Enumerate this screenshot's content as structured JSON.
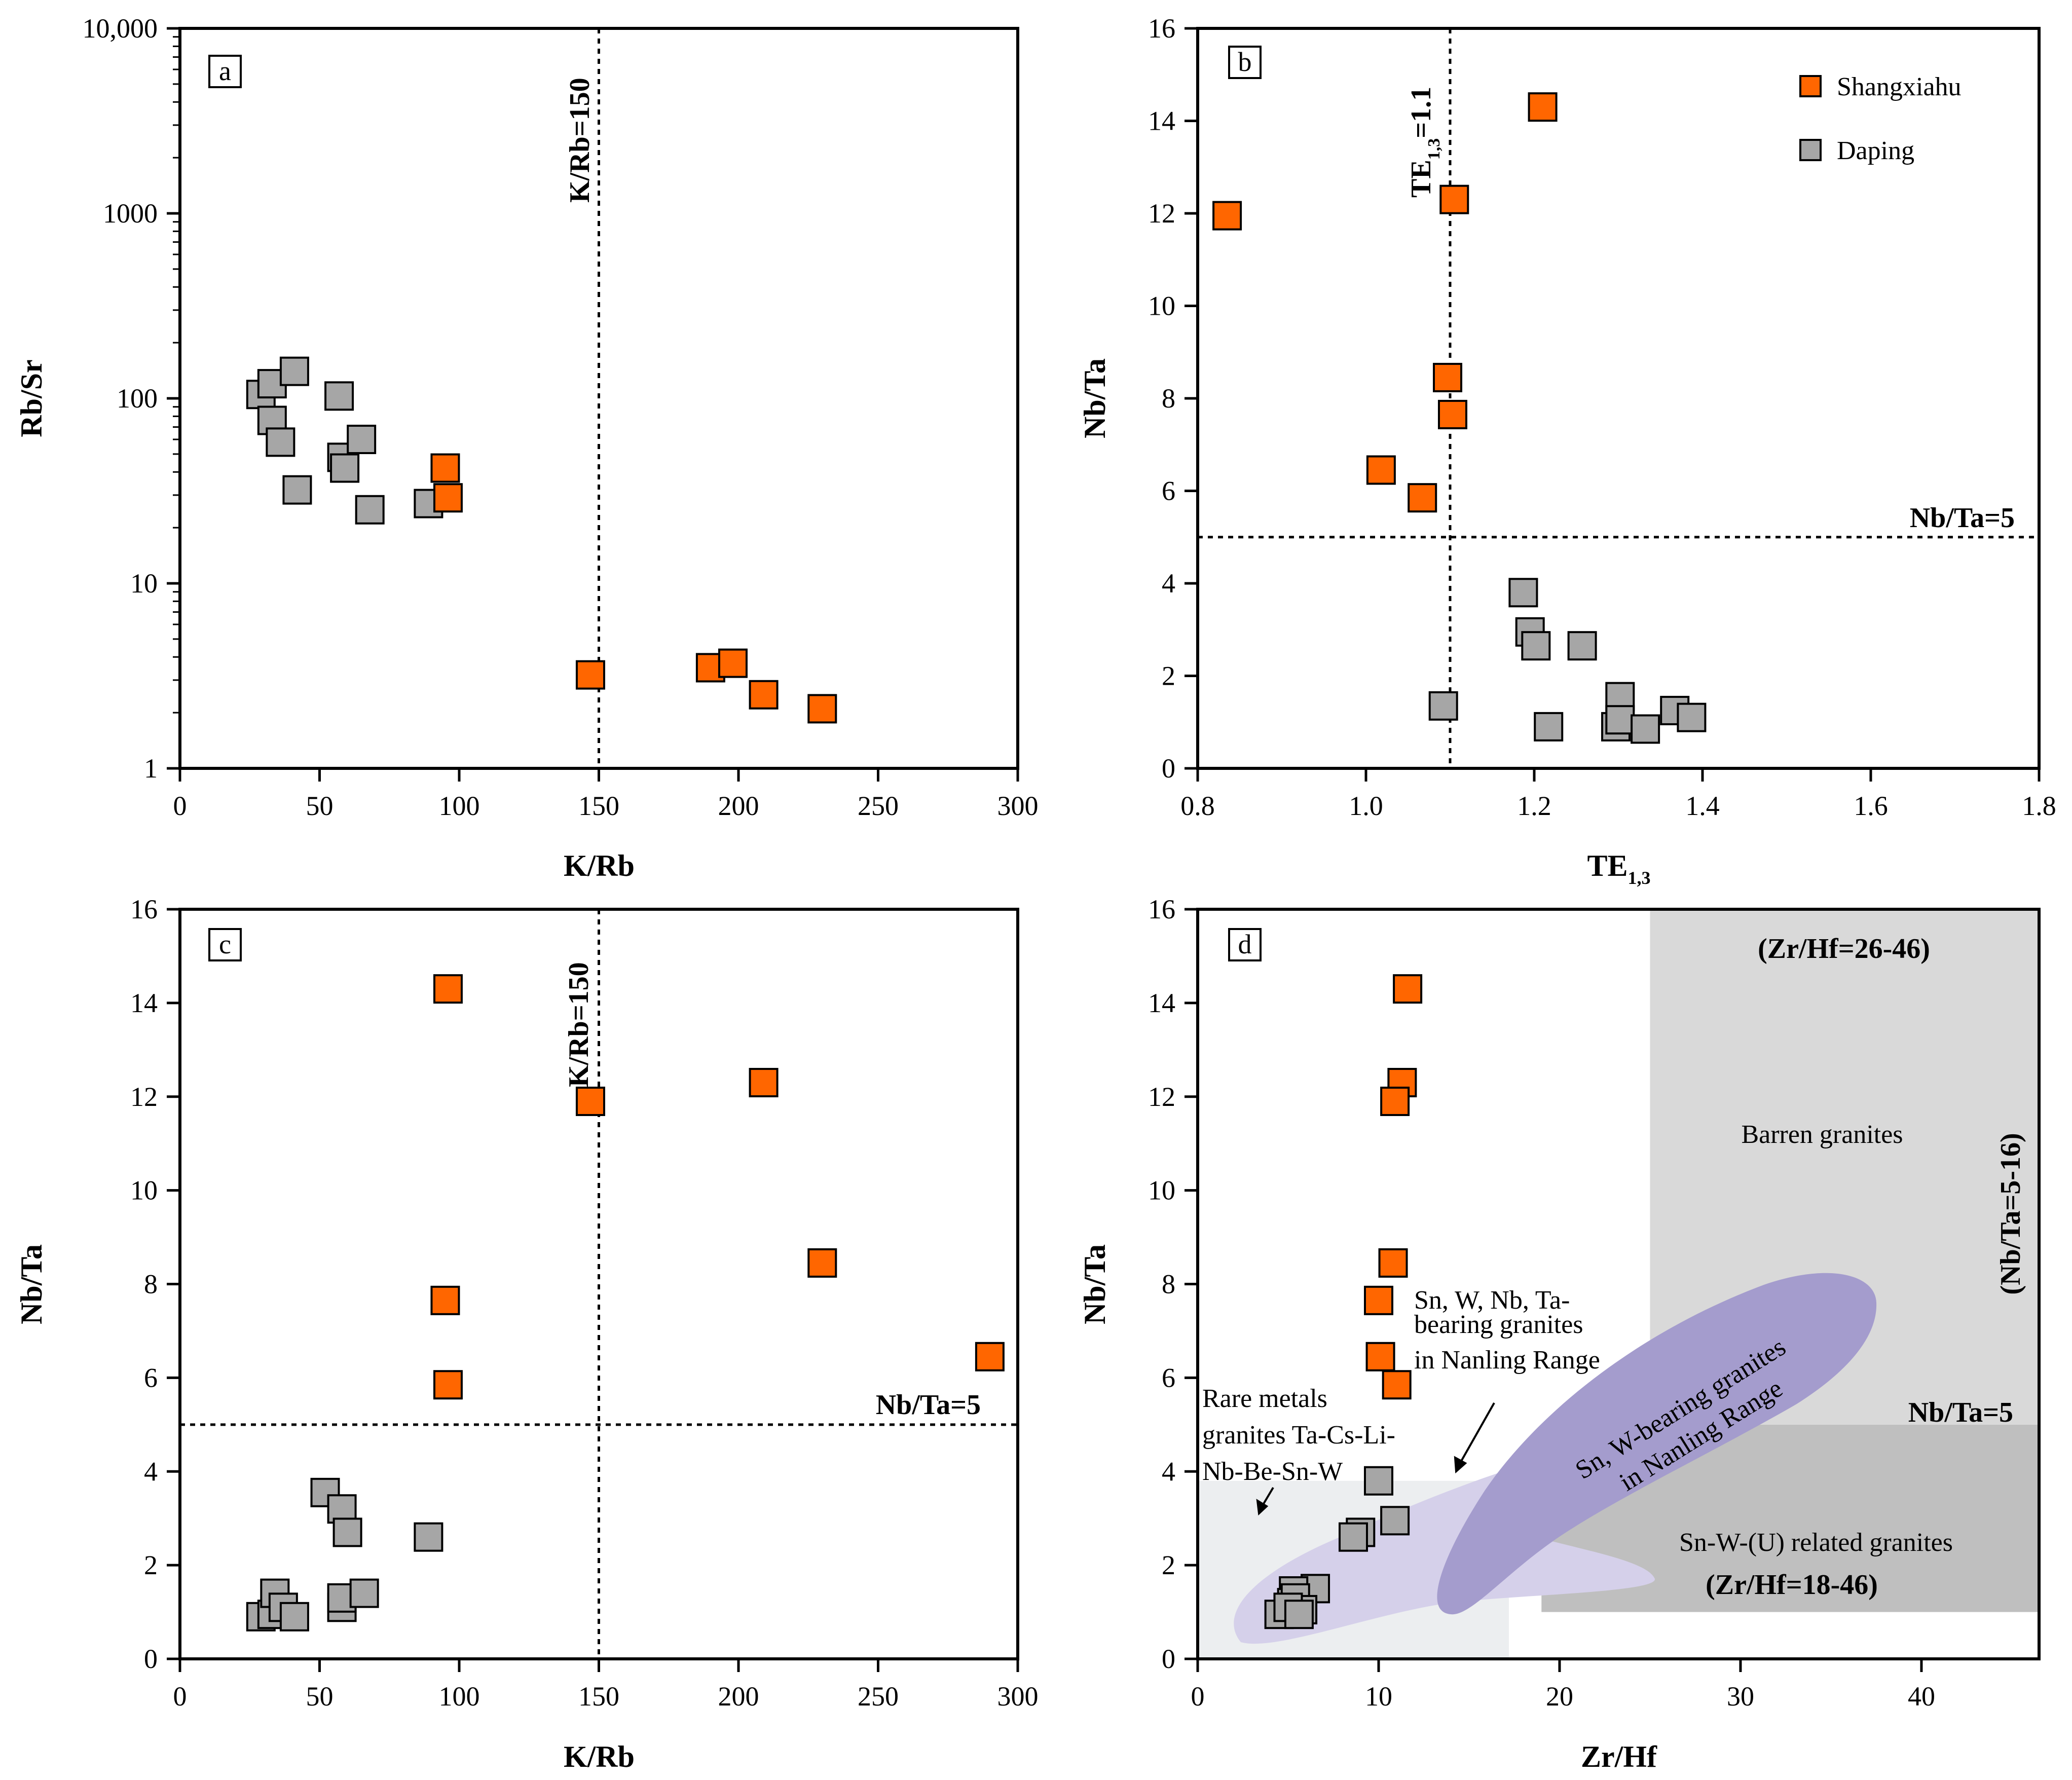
{
  "colors": {
    "shangxiahu": "#ff6600",
    "daping": "#a6a6a6",
    "barren": "#d9d9d9",
    "snw_related": "#bfbfbf",
    "rare_metals": "#eceef0",
    "snwnbta_field": "#d5d0ea",
    "snw_field": "#a49ccd"
  },
  "legend": {
    "shangxiahu": "Shangxiahu",
    "daping": "Daping"
  },
  "chart_data": [
    {
      "id": "a",
      "type": "scatter",
      "tag": "a",
      "xlabel": "K/Rb",
      "ylabel": "Rb/Sr",
      "xscale": "linear",
      "yscale": "log",
      "xlim": [
        0,
        300
      ],
      "ylim": [
        1,
        10000
      ],
      "xticks": [
        0,
        50,
        100,
        150,
        200,
        250,
        300
      ],
      "xtick_labels": [
        "0",
        "50",
        "100",
        "150",
        "200",
        "250",
        "300"
      ],
      "yticks": [
        1,
        10,
        100,
        1000,
        10000
      ],
      "ytick_labels": [
        "1",
        "10",
        "100",
        "1000",
        "10,000"
      ],
      "reference_lines": [
        {
          "orient": "v",
          "value": 150,
          "label": "K/Rb=150"
        }
      ],
      "series": [
        {
          "name": "Shangxiahu",
          "key": "shangxiahu",
          "x": [
            95,
            96,
            147,
            190,
            198,
            209,
            230
          ],
          "y": [
            42,
            29,
            3.2,
            3.5,
            3.7,
            2.5,
            2.1
          ]
        },
        {
          "name": "Daping",
          "key": "daping",
          "x": [
            29,
            33,
            33,
            36,
            41,
            42,
            57,
            58,
            59,
            65,
            68,
            89
          ],
          "y": [
            105,
            120,
            76,
            58,
            140,
            32,
            103,
            48,
            42,
            60,
            25,
            27
          ]
        }
      ]
    },
    {
      "id": "b",
      "type": "scatter",
      "tag": "b",
      "xlabel_main": "TE",
      "xlabel_sub": "1,3",
      "ylabel": "Nb/Ta",
      "xscale": "linear",
      "yscale": "linear",
      "xlim": [
        0.8,
        1.8
      ],
      "ylim": [
        0,
        16
      ],
      "xticks": [
        0.8,
        1.0,
        1.2,
        1.4,
        1.6,
        1.8
      ],
      "xtick_labels": [
        "0.8",
        "1.0",
        "1.2",
        "1.4",
        "1.6",
        "1.8"
      ],
      "yticks": [
        0,
        2,
        4,
        6,
        8,
        10,
        12,
        14,
        16
      ],
      "ytick_labels": [
        "0",
        "2",
        "4",
        "6",
        "8",
        "10",
        "12",
        "14",
        "16"
      ],
      "reference_lines": [
        {
          "orient": "v",
          "value": 1.1,
          "label_main": "TE",
          "label_sub": "1,3",
          "label_tail": "=1.1"
        },
        {
          "orient": "h",
          "value": 5,
          "label": "Nb/Ta=5"
        }
      ],
      "series": [
        {
          "name": "Shangxiahu",
          "key": "shangxiahu",
          "x": [
            0.835,
            1.018,
            1.067,
            1.097,
            1.103,
            1.105,
            1.21
          ],
          "y": [
            11.95,
            6.45,
            5.85,
            8.45,
            7.65,
            12.3,
            14.3
          ]
        },
        {
          "name": "Daping",
          "key": "daping",
          "x": [
            1.092,
            1.187,
            1.195,
            1.202,
            1.217,
            1.257,
            1.297,
            1.302,
            1.302,
            1.332,
            1.367,
            1.387
          ],
          "y": [
            1.35,
            3.8,
            2.95,
            2.65,
            0.9,
            2.65,
            0.9,
            1.55,
            1.05,
            0.85,
            1.25,
            1.1
          ]
        }
      ]
    },
    {
      "id": "c",
      "type": "scatter",
      "tag": "c",
      "xlabel": "K/Rb",
      "ylabel": "Nb/Ta",
      "xscale": "linear",
      "yscale": "linear",
      "xlim": [
        0,
        300
      ],
      "ylim": [
        0,
        16
      ],
      "xticks": [
        0,
        50,
        100,
        150,
        200,
        250,
        300
      ],
      "xtick_labels": [
        "0",
        "50",
        "100",
        "150",
        "200",
        "250",
        "300"
      ],
      "yticks": [
        0,
        2,
        4,
        6,
        8,
        10,
        12,
        14,
        16
      ],
      "ytick_labels": [
        "0",
        "2",
        "4",
        "6",
        "8",
        "10",
        "12",
        "14",
        "16"
      ],
      "reference_lines": [
        {
          "orient": "v",
          "value": 150,
          "label": "K/Rb=150"
        },
        {
          "orient": "h",
          "value": 5,
          "label": "Nb/Ta=5"
        }
      ],
      "series": [
        {
          "name": "Shangxiahu",
          "key": "shangxiahu",
          "x": [
            96,
            95,
            96,
            147,
            209,
            230,
            290
          ],
          "y": [
            14.3,
            7.65,
            5.85,
            11.9,
            12.3,
            8.45,
            6.45
          ]
        },
        {
          "name": "Daping",
          "key": "daping",
          "x": [
            29,
            33,
            34,
            37,
            41,
            52,
            58,
            58,
            58,
            60,
            66,
            89
          ],
          "y": [
            0.9,
            0.95,
            1.4,
            1.1,
            0.9,
            3.55,
            1.1,
            1.3,
            3.2,
            2.7,
            1.4,
            2.6
          ]
        }
      ]
    },
    {
      "id": "d",
      "type": "scatter",
      "tag": "d",
      "xlabel": "Zr/Hf",
      "ylabel": "Nb/Ta",
      "xscale": "linear",
      "yscale": "linear",
      "xlim": [
        0,
        46.5
      ],
      "ylim": [
        0,
        16
      ],
      "xticks": [
        0,
        10,
        20,
        30,
        40
      ],
      "xtick_labels": [
        "0",
        "10",
        "20",
        "30",
        "40"
      ],
      "yticks": [
        0,
        2,
        4,
        6,
        8,
        10,
        12,
        14,
        16
      ],
      "ytick_labels": [
        "0",
        "2",
        "4",
        "6",
        "8",
        "10",
        "12",
        "14",
        "16"
      ],
      "regions": {
        "barren": {
          "label": "Barren granites",
          "range_zrhf": "(Zr/Hf=26-46)",
          "range_nbta": "(Nb/Ta=5-16)",
          "box_x": [
            25,
            46.5
          ],
          "box_y": [
            5,
            16
          ]
        },
        "snw_related": {
          "label": "Sn-W-(U) related granites",
          "range": "(Zr/Hf=18-46)",
          "box_x": [
            19,
            46.5
          ],
          "box_y": [
            1,
            5
          ],
          "upper_part_x": [
            25,
            46.5
          ],
          "nbta_label": "Nb/Ta=5"
        },
        "rare_metals": {
          "label_lines": [
            "Rare metals",
            "granites Ta-Cs-Li-",
            "Nb-Be-Sn-W"
          ],
          "box_x": [
            0,
            17.2
          ],
          "box_y": [
            0,
            3.8
          ]
        },
        "snwnbta_field": {
          "label_lines": [
            "Sn, W, Nb, Ta-",
            "bearing granites",
            "in Nanling Range"
          ]
        },
        "snw_field": {
          "label_lines": [
            "Sn, W-bearing granites",
            "in Nanling Range"
          ]
        }
      },
      "series": [
        {
          "name": "Shangxiahu",
          "key": "shangxiahu",
          "x": [
            11.6,
            11.3,
            10.9,
            10.8,
            10.0,
            10.1,
            11.0
          ],
          "y": [
            14.3,
            12.3,
            11.9,
            8.45,
            7.65,
            6.45,
            5.85
          ]
        },
        {
          "name": "Daping",
          "key": "daping",
          "x": [
            10.0,
            9.0,
            8.6,
            10.9,
            6.5,
            5.3,
            5.2,
            5.4,
            4.5,
            5.8,
            5.0,
            5.6
          ],
          "y": [
            3.8,
            2.7,
            2.6,
            2.95,
            1.5,
            1.45,
            1.2,
            1.3,
            0.95,
            1.05,
            1.1,
            0.95
          ]
        }
      ]
    }
  ]
}
